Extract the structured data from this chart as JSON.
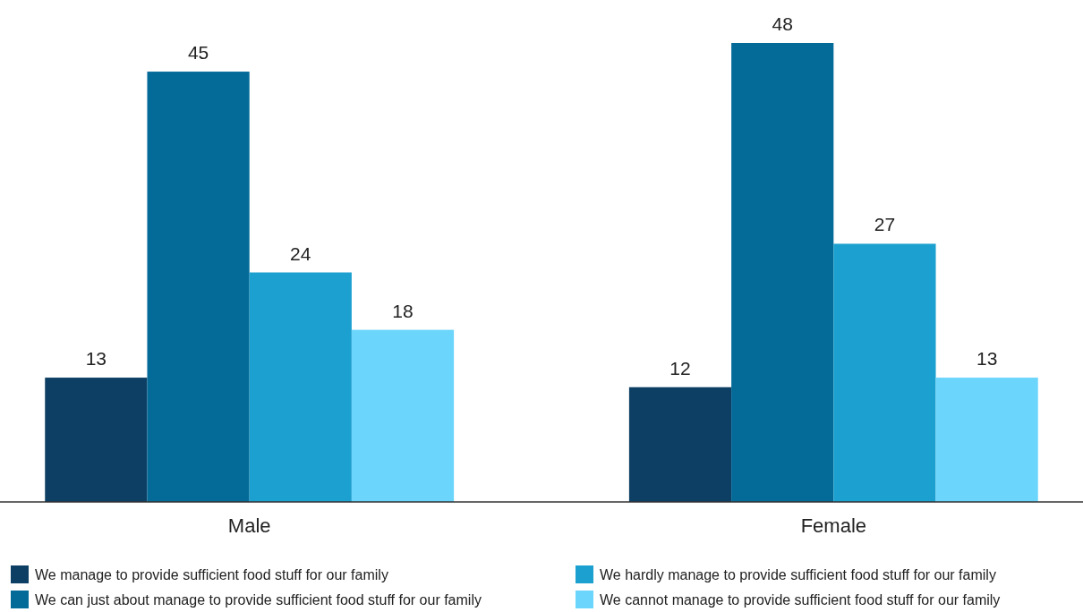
{
  "chart_data": {
    "type": "bar",
    "categories": [
      "Male",
      "Female"
    ],
    "series": [
      {
        "name": "We manage to provide sufficient food stuff for our family",
        "color": "#0c3f63",
        "values": [
          13,
          12
        ]
      },
      {
        "name": "We can just about manage to provide sufficient food stuff for our family",
        "color": "#046a98",
        "values": [
          45,
          48
        ]
      },
      {
        "name": "We hardly manage to provide sufficient food stuff for our family",
        "color": "#1ca0cf",
        "values": [
          24,
          27
        ]
      },
      {
        "name": "We cannot manage to provide sufficient food stuff for our family",
        "color": "#6cd5fb",
        "values": [
          18,
          13
        ]
      }
    ],
    "data_labels": true,
    "legend": "bottom",
    "grid": false
  }
}
